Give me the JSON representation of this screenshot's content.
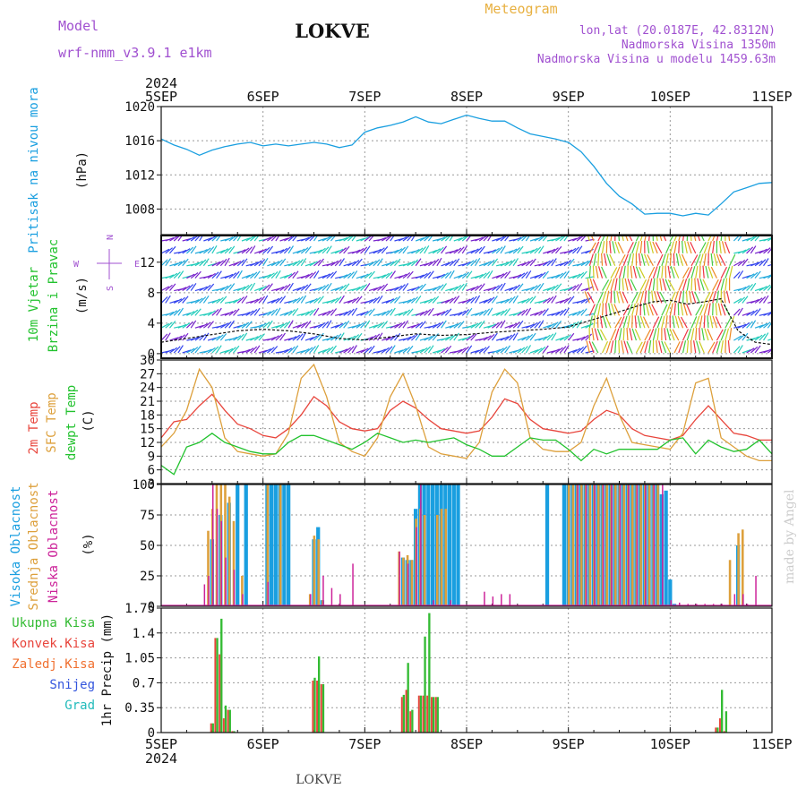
{
  "header": {
    "model_label": "Model",
    "model_name": "wrf-nmm_v3.9.1 e1km",
    "station": "LOKVE",
    "product": "Meteogram",
    "lonlat": "lon,lat (20.0187E, 42.8312N)",
    "altitude": "Nadmorska Visina 1350m",
    "model_altitude": "Nadmorska Visina u modelu 1459.63m",
    "footer_station": "LOKVE",
    "watermark": "made by Angel"
  },
  "colors": {
    "pressure": "#1a9fe0",
    "temp2m": "#e8453c",
    "sfc_temp": "#dda03c",
    "dewpt": "#22c22e",
    "high_cloud": "#1a9fe0",
    "mid_cloud": "#dda03c",
    "low_cloud": "#cc2299",
    "total_precip": "#33bb33",
    "conv_precip": "#e8453c",
    "frozen_precip": "#f07030",
    "snow": "#3355dd",
    "hail": "#22bbbb",
    "label_purple": "#a050d0",
    "label_gold": "#e8b040"
  },
  "x_axis": {
    "year": "2024",
    "days": [
      "5SEP",
      "6SEP",
      "7SEP",
      "8SEP",
      "9SEP",
      "10SEP",
      "11SEP"
    ],
    "range_hours": [
      0,
      144
    ]
  },
  "panels": {
    "pressure": {
      "label": "Pritisak na nivou mora",
      "unit": "(hPa)"
    },
    "wind": {
      "label1": "10m Vjetar",
      "label2": "Brzina i Pravac",
      "unit": "(m/s)",
      "compass_n": "N",
      "compass_w": "W",
      "compass_e": "E",
      "compass_s": "S"
    },
    "temp": {
      "label1": "2m Temp",
      "label2": "SFC Temp",
      "label3": "dewpt Temp",
      "unit": "(C)"
    },
    "cloud": {
      "label1": "Visoka Oblacnost",
      "label2": "Srednja Oblacnost",
      "label3": "Niska Oblacnost",
      "unit": "(%)"
    },
    "precip": {
      "unit_label": "1hr Precip (mm)",
      "legend": [
        "Ukupna Kisa",
        "Konvek.Kisa",
        "Zaledj.Kisa",
        "Snijeg",
        "Grad"
      ]
    }
  },
  "chart_data": [
    {
      "type": "line",
      "title": "",
      "ylabel": "Pritisak na nivou mora (hPa)",
      "ylim": [
        1005,
        1020
      ],
      "yticks": [
        "1008",
        "1012",
        "1016",
        "1020"
      ],
      "series": [
        {
          "name": "Pritisak na nivou mora",
          "x": [
            0,
            3,
            6,
            9,
            12,
            15,
            18,
            21,
            24,
            27,
            30,
            33,
            36,
            39,
            42,
            45,
            48,
            51,
            54,
            57,
            60,
            63,
            66,
            69,
            72,
            75,
            78,
            81,
            84,
            87,
            90,
            93,
            96,
            99,
            102,
            105,
            108,
            111,
            114,
            117,
            120,
            123,
            126,
            129,
            132,
            135,
            138,
            141,
            144
          ],
          "values": [
            1016.2,
            1015.5,
            1015.0,
            1014.3,
            1014.9,
            1015.3,
            1015.6,
            1015.8,
            1015.4,
            1015.6,
            1015.4,
            1015.6,
            1015.8,
            1015.6,
            1015.2,
            1015.5,
            1017.0,
            1017.5,
            1017.8,
            1018.2,
            1018.8,
            1018.2,
            1018.0,
            1018.5,
            1019.0,
            1018.6,
            1018.3,
            1018.3,
            1017.5,
            1016.8,
            1016.5,
            1016.2,
            1015.8,
            1014.7,
            1013.0,
            1011.0,
            1009.5,
            1008.6,
            1007.4,
            1007.5,
            1007.5,
            1007.2,
            1007.5,
            1007.3,
            1008.6,
            1010.0,
            1010.5,
            1011.0,
            1011.1
          ]
        }
      ]
    },
    {
      "type": "line",
      "title": "",
      "ylabel": "10m Vjetar Brzina i Pravac (m/s)",
      "ylim": [
        -0.6,
        15.5
      ],
      "yticks": [
        "0",
        "4",
        "8",
        "12"
      ],
      "series": [
        {
          "name": "10m Vjetar",
          "x": [
            0,
            6,
            12,
            18,
            24,
            30,
            36,
            42,
            48,
            54,
            60,
            66,
            72,
            78,
            84,
            90,
            96,
            102,
            108,
            112,
            116,
            120,
            124,
            128,
            132,
            136,
            140,
            144
          ],
          "values": [
            1.5,
            2.0,
            2.5,
            3.0,
            3.2,
            3.0,
            2.6,
            2.0,
            1.8,
            2.2,
            2.6,
            2.4,
            2.5,
            2.8,
            3.0,
            3.2,
            3.5,
            4.5,
            5.5,
            6.2,
            6.8,
            7.0,
            6.5,
            6.8,
            7.2,
            3.0,
            1.5,
            1.2
          ]
        }
      ]
    },
    {
      "type": "line",
      "title": "",
      "ylabel": "Temp (C)",
      "ylim": [
        3,
        30
      ],
      "yticks": [
        "3",
        "6",
        "9",
        "12",
        "15",
        "18",
        "21",
        "24",
        "27",
        "30"
      ],
      "series": [
        {
          "name": "2m Temp",
          "x": [
            0,
            3,
            6,
            9,
            12,
            15,
            18,
            21,
            24,
            27,
            30,
            33,
            36,
            39,
            42,
            45,
            48,
            51,
            54,
            57,
            60,
            63,
            66,
            69,
            72,
            75,
            78,
            81,
            84,
            87,
            90,
            93,
            96,
            99,
            102,
            105,
            108,
            111,
            114,
            117,
            120,
            123,
            126,
            129,
            132,
            135,
            138,
            141,
            144
          ],
          "values": [
            13,
            16.5,
            17,
            20,
            22.5,
            19,
            16,
            15,
            13.5,
            13,
            15,
            18,
            22,
            20,
            16.5,
            15,
            14.5,
            15,
            19,
            21,
            19.5,
            17,
            15,
            14.5,
            14,
            14.5,
            17.5,
            21.5,
            20.5,
            17,
            15,
            14.5,
            14,
            14.5,
            17,
            19,
            18,
            15,
            13.5,
            13,
            12.5,
            13.5,
            17,
            20,
            17,
            14,
            13.5,
            12.5,
            12.5
          ]
        },
        {
          "name": "SFC Temp",
          "x": [
            0,
            3,
            6,
            9,
            12,
            15,
            18,
            21,
            24,
            27,
            30,
            33,
            36,
            39,
            42,
            45,
            48,
            51,
            54,
            57,
            60,
            63,
            66,
            69,
            72,
            75,
            78,
            81,
            84,
            87,
            90,
            93,
            96,
            99,
            102,
            105,
            108,
            111,
            114,
            117,
            120,
            123,
            126,
            129,
            132,
            135,
            138,
            141,
            144
          ],
          "values": [
            11,
            14,
            19,
            28,
            24,
            13,
            10,
            9.5,
            9,
            9.5,
            14,
            26,
            29,
            22,
            12,
            10,
            9,
            13,
            22,
            27,
            20,
            11,
            9.5,
            9,
            8.5,
            12,
            23,
            28,
            25,
            13,
            10.5,
            10,
            10,
            12,
            20,
            26,
            18,
            12,
            11.5,
            11,
            10.5,
            14,
            25,
            26,
            13,
            11,
            9,
            8,
            8
          ]
        },
        {
          "name": "dewpt Temp",
          "x": [
            0,
            3,
            6,
            9,
            12,
            15,
            18,
            21,
            24,
            27,
            30,
            33,
            36,
            39,
            42,
            45,
            48,
            51,
            54,
            57,
            60,
            63,
            66,
            69,
            72,
            75,
            78,
            81,
            84,
            87,
            90,
            93,
            96,
            99,
            102,
            105,
            108,
            111,
            114,
            117,
            120,
            123,
            126,
            129,
            132,
            135,
            138,
            141,
            144
          ],
          "values": [
            7,
            5,
            11,
            12,
            14,
            12,
            11,
            10,
            9.5,
            9.5,
            12,
            13.5,
            13.5,
            12.5,
            11.5,
            10.5,
            12,
            14,
            13,
            12,
            12.5,
            12,
            12.5,
            13,
            11.5,
            10.5,
            9,
            9,
            11,
            13,
            12.5,
            12.5,
            10.5,
            8,
            10.5,
            9.5,
            10.5,
            10.5,
            10.5,
            10.5,
            12.5,
            13,
            9.5,
            12.5,
            11,
            10,
            10.5,
            12.5,
            9.5
          ]
        }
      ]
    },
    {
      "type": "bar",
      "title": "",
      "ylabel": "Oblacnost (%)",
      "ylim": [
        0,
        100
      ],
      "yticks": [
        "0",
        "25",
        "50",
        "75",
        "100"
      ],
      "series": [
        {
          "name": "Visoka Oblacnost",
          "x": [
            12,
            14,
            16,
            18,
            20,
            25,
            26,
            27,
            28,
            29,
            30,
            36,
            37,
            38,
            57,
            58,
            59,
            60,
            61,
            62,
            63,
            64,
            65,
            66,
            67,
            68,
            69,
            70,
            91,
            95,
            96,
            97,
            98,
            99,
            100,
            101,
            102,
            103,
            104,
            105,
            106,
            107,
            108,
            109,
            110,
            111,
            112,
            113,
            114,
            115,
            116,
            117,
            118,
            119,
            120,
            121,
            136
          ],
          "values": [
            55,
            75,
            85,
            100,
            100,
            100,
            100,
            100,
            100,
            100,
            100,
            55,
            65,
            5,
            40,
            38,
            38,
            80,
            100,
            100,
            100,
            100,
            100,
            100,
            100,
            100,
            100,
            100,
            100,
            100,
            100,
            100,
            100,
            100,
            100,
            100,
            100,
            100,
            100,
            100,
            100,
            100,
            100,
            100,
            100,
            100,
            100,
            100,
            100,
            100,
            100,
            100,
            92,
            95,
            22,
            2,
            50
          ]
        },
        {
          "name": "Srednja Oblacnost",
          "x": [
            11,
            12,
            13,
            14,
            15,
            16,
            17,
            19,
            25,
            28,
            35,
            36,
            37,
            38,
            56,
            57,
            58,
            59,
            60,
            61,
            62,
            65,
            66,
            67,
            96,
            97,
            98,
            99,
            100,
            101,
            102,
            103,
            104,
            105,
            106,
            107,
            108,
            109,
            110,
            111,
            112,
            113,
            114,
            115,
            116,
            117,
            134,
            136,
            137
          ],
          "values": [
            62,
            80,
            100,
            100,
            100,
            90,
            70,
            25,
            100,
            100,
            10,
            58,
            55,
            5,
            45,
            40,
            42,
            38,
            72,
            80,
            75,
            75,
            80,
            80,
            100,
            100,
            100,
            100,
            100,
            100,
            100,
            100,
            100,
            100,
            100,
            100,
            100,
            100,
            100,
            100,
            100,
            100,
            100,
            100,
            100,
            100,
            38,
            60,
            63
          ]
        },
        {
          "name": "Niska Oblacnost",
          "x": [
            10,
            11,
            12,
            13,
            14,
            15,
            17,
            19,
            25,
            35,
            38,
            40,
            42,
            45,
            56,
            58,
            60,
            61,
            64,
            68,
            76,
            78,
            80,
            82,
            98,
            100,
            102,
            104,
            106,
            108,
            110,
            112,
            114,
            116,
            118,
            120,
            122,
            124,
            126,
            128,
            130,
            132,
            135,
            137,
            138,
            140
          ],
          "values": [
            18,
            25,
            100,
            80,
            70,
            40,
            30,
            10,
            20,
            10,
            25,
            15,
            10,
            35,
            45,
            35,
            65,
            100,
            5,
            5,
            12,
            8,
            10,
            10,
            100,
            100,
            100,
            100,
            100,
            100,
            100,
            100,
            100,
            100,
            100,
            5,
            3,
            2,
            2,
            2,
            2,
            2,
            10,
            10,
            2,
            25
          ]
        }
      ]
    },
    {
      "type": "bar",
      "title": "",
      "ylabel": "1hr Precip (mm)",
      "ylim": [
        0,
        1.75
      ],
      "yticks": [
        "0",
        "0.35",
        "0.7",
        "1.05",
        "1.4",
        "1.75"
      ],
      "series": [
        {
          "name": "Ukupna Kisa",
          "x": [
            12,
            13,
            14,
            15,
            16,
            17,
            36,
            37,
            38,
            57,
            58,
            59,
            61,
            62,
            63,
            64,
            65,
            131,
            132,
            133
          ],
          "values": [
            0.13,
            1.33,
            1.6,
            0.38,
            0.32,
            0.02,
            0.77,
            1.07,
            0.68,
            0.53,
            0.98,
            0.32,
            0.52,
            1.35,
            1.68,
            0.5,
            0.5,
            0.07,
            0.6,
            0.3
          ]
        },
        {
          "name": "Konvek.Kisa",
          "x": [
            12,
            13,
            14,
            15,
            16,
            17,
            36,
            37,
            38,
            57,
            58,
            59,
            61,
            62,
            63,
            64,
            65,
            131,
            132,
            133
          ],
          "values": [
            0.13,
            1.33,
            1.1,
            0.2,
            0.32,
            0.02,
            0.73,
            0.73,
            0.68,
            0.5,
            0.6,
            0.3,
            0.52,
            0.52,
            0.52,
            0.5,
            0.5,
            0.07,
            0.2,
            0.02
          ]
        }
      ]
    }
  ]
}
